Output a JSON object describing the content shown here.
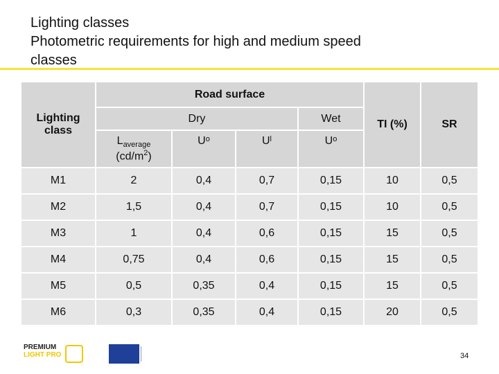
{
  "header": {
    "title_lines": [
      "Lighting classes",
      "Photometric requirements for high and medium speed",
      "classes"
    ]
  },
  "table": {
    "col_lighting_class": "Lighting class",
    "group_road_surface": "Road surface",
    "group_dry": "Dry",
    "group_wet": "Wet",
    "col_l_average": {
      "symbol": "L",
      "subscript": "average",
      "unit_open": "(cd/m",
      "unit_sup": "2",
      "unit_close": ")"
    },
    "col_uo_dry": {
      "symbol": "U",
      "subscript": "o"
    },
    "col_ul": {
      "symbol": "U",
      "subscript": "l"
    },
    "col_uo_wet": {
      "symbol": "U",
      "subscript": "o"
    },
    "col_ti": "TI (%)",
    "col_sr": "SR",
    "rows": [
      [
        "M1",
        "2",
        "0,4",
        "0,7",
        "0,15",
        "10",
        "0,5"
      ],
      [
        "M2",
        "1,5",
        "0,4",
        "0,7",
        "0,15",
        "10",
        "0,5"
      ],
      [
        "M3",
        "1",
        "0,4",
        "0,6",
        "0,15",
        "15",
        "0,5"
      ],
      [
        "M4",
        "0,75",
        "0,4",
        "0,6",
        "0,15",
        "15",
        "0,5"
      ],
      [
        "M5",
        "0,5",
        "0,35",
        "0,4",
        "0,15",
        "15",
        "0,5"
      ],
      [
        "M6",
        "0,3",
        "0,35",
        "0,4",
        "0,15",
        "20",
        "0,5"
      ]
    ]
  },
  "footer": {
    "logo_top": "PREMIUM",
    "logo_bottom": "LIGHT PRO",
    "page_number": "34"
  }
}
